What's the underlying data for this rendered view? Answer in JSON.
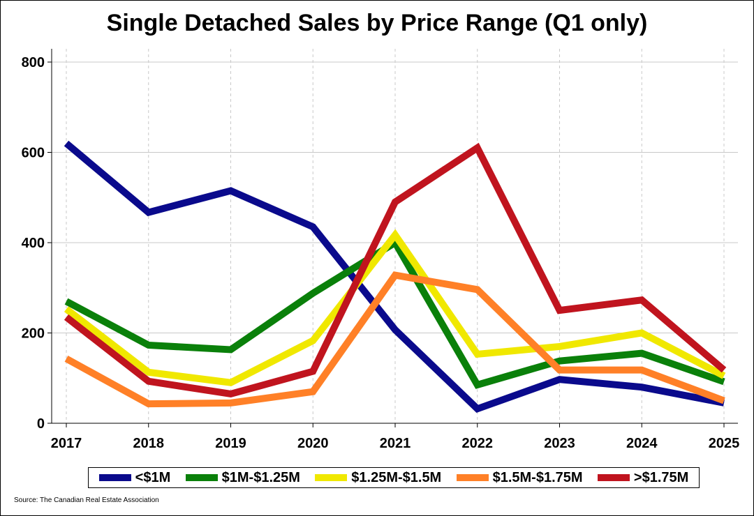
{
  "chart_data": {
    "type": "line",
    "title": "Single Detached Sales by Price Range (Q1 only)",
    "xlabel": "",
    "ylabel": "",
    "categories": [
      "2017",
      "2018",
      "2019",
      "2020",
      "2021",
      "2022",
      "2023",
      "2024",
      "2025"
    ],
    "ylim": [
      0,
      800
    ],
    "yticks": [
      0,
      200,
      400,
      600,
      800
    ],
    "grid": true,
    "legend_position": "bottom",
    "series": [
      {
        "name": "<$1M",
        "color": "#0a0a8c",
        "values": [
          620,
          467,
          515,
          435,
          207,
          32,
          97,
          80,
          45
        ]
      },
      {
        "name": "$1M-$1.25M",
        "color": "#0a800a",
        "values": [
          270,
          173,
          163,
          288,
          400,
          85,
          138,
          155,
          92
        ]
      },
      {
        "name": "$1.25M-$1.5M",
        "color": "#f0e800",
        "values": [
          253,
          113,
          90,
          183,
          417,
          153,
          170,
          200,
          105
        ]
      },
      {
        "name": "$1.5M-$1.75M",
        "color": "#ff8027",
        "values": [
          143,
          43,
          45,
          70,
          328,
          296,
          118,
          118,
          50
        ]
      },
      {
        "name": ">$1.75M",
        "color": "#c0141e",
        "values": [
          235,
          93,
          65,
          115,
          490,
          610,
          250,
          273,
          118
        ]
      }
    ]
  },
  "source": "Source: The Canadian Real Estate Association"
}
